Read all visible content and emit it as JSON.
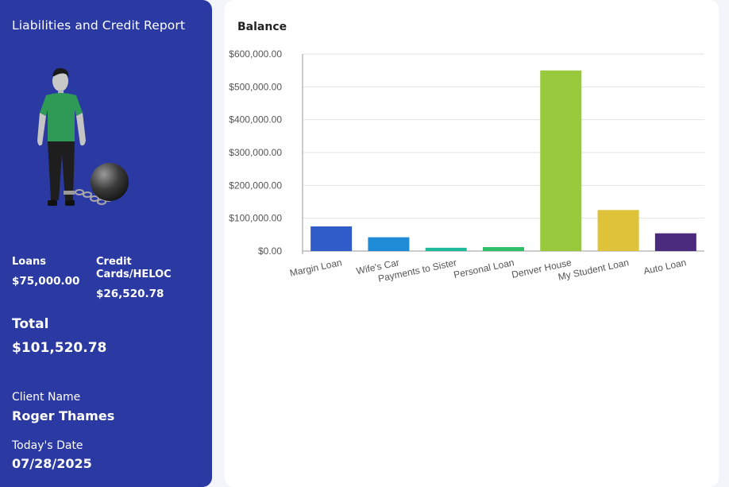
{
  "sidebar": {
    "title": "Liabilities and Credit Report",
    "loans": {
      "label": "Loans",
      "value": "$75,000.00"
    },
    "credit": {
      "label_line1": "Credit",
      "label_line2": "Cards/HELOC",
      "value": "$26,520.78"
    },
    "total": {
      "label": "Total",
      "value": "$101,520.78"
    },
    "client": {
      "label": "Client Name",
      "value": "Roger Thames"
    },
    "date": {
      "label": "Today's Date",
      "value": "07/28/2025"
    }
  },
  "chart_card": {
    "title": "Balance"
  },
  "chart_data": {
    "type": "bar",
    "title": "Balance",
    "categories": [
      "Margin Loan",
      "Wife's Car",
      "Payments to Sister",
      "Personal Loan",
      "Denver House",
      "My Student Loan",
      "Auto Loan"
    ],
    "values": [
      75000,
      42000,
      10000,
      12000,
      550000,
      125000,
      54000
    ],
    "colors": [
      "#2f5cc8",
      "#1f8ad6",
      "#1eb89a",
      "#2dbf6a",
      "#98c93c",
      "#ddc23a",
      "#4b2b7d"
    ],
    "ylim": [
      0,
      600000
    ],
    "yticks": [
      "$0.00",
      "$100,000.00",
      "$200,000.00",
      "$300,000.00",
      "$400,000.00",
      "$500,000.00",
      "$600,000.00"
    ],
    "grid": true,
    "legend": "none"
  }
}
